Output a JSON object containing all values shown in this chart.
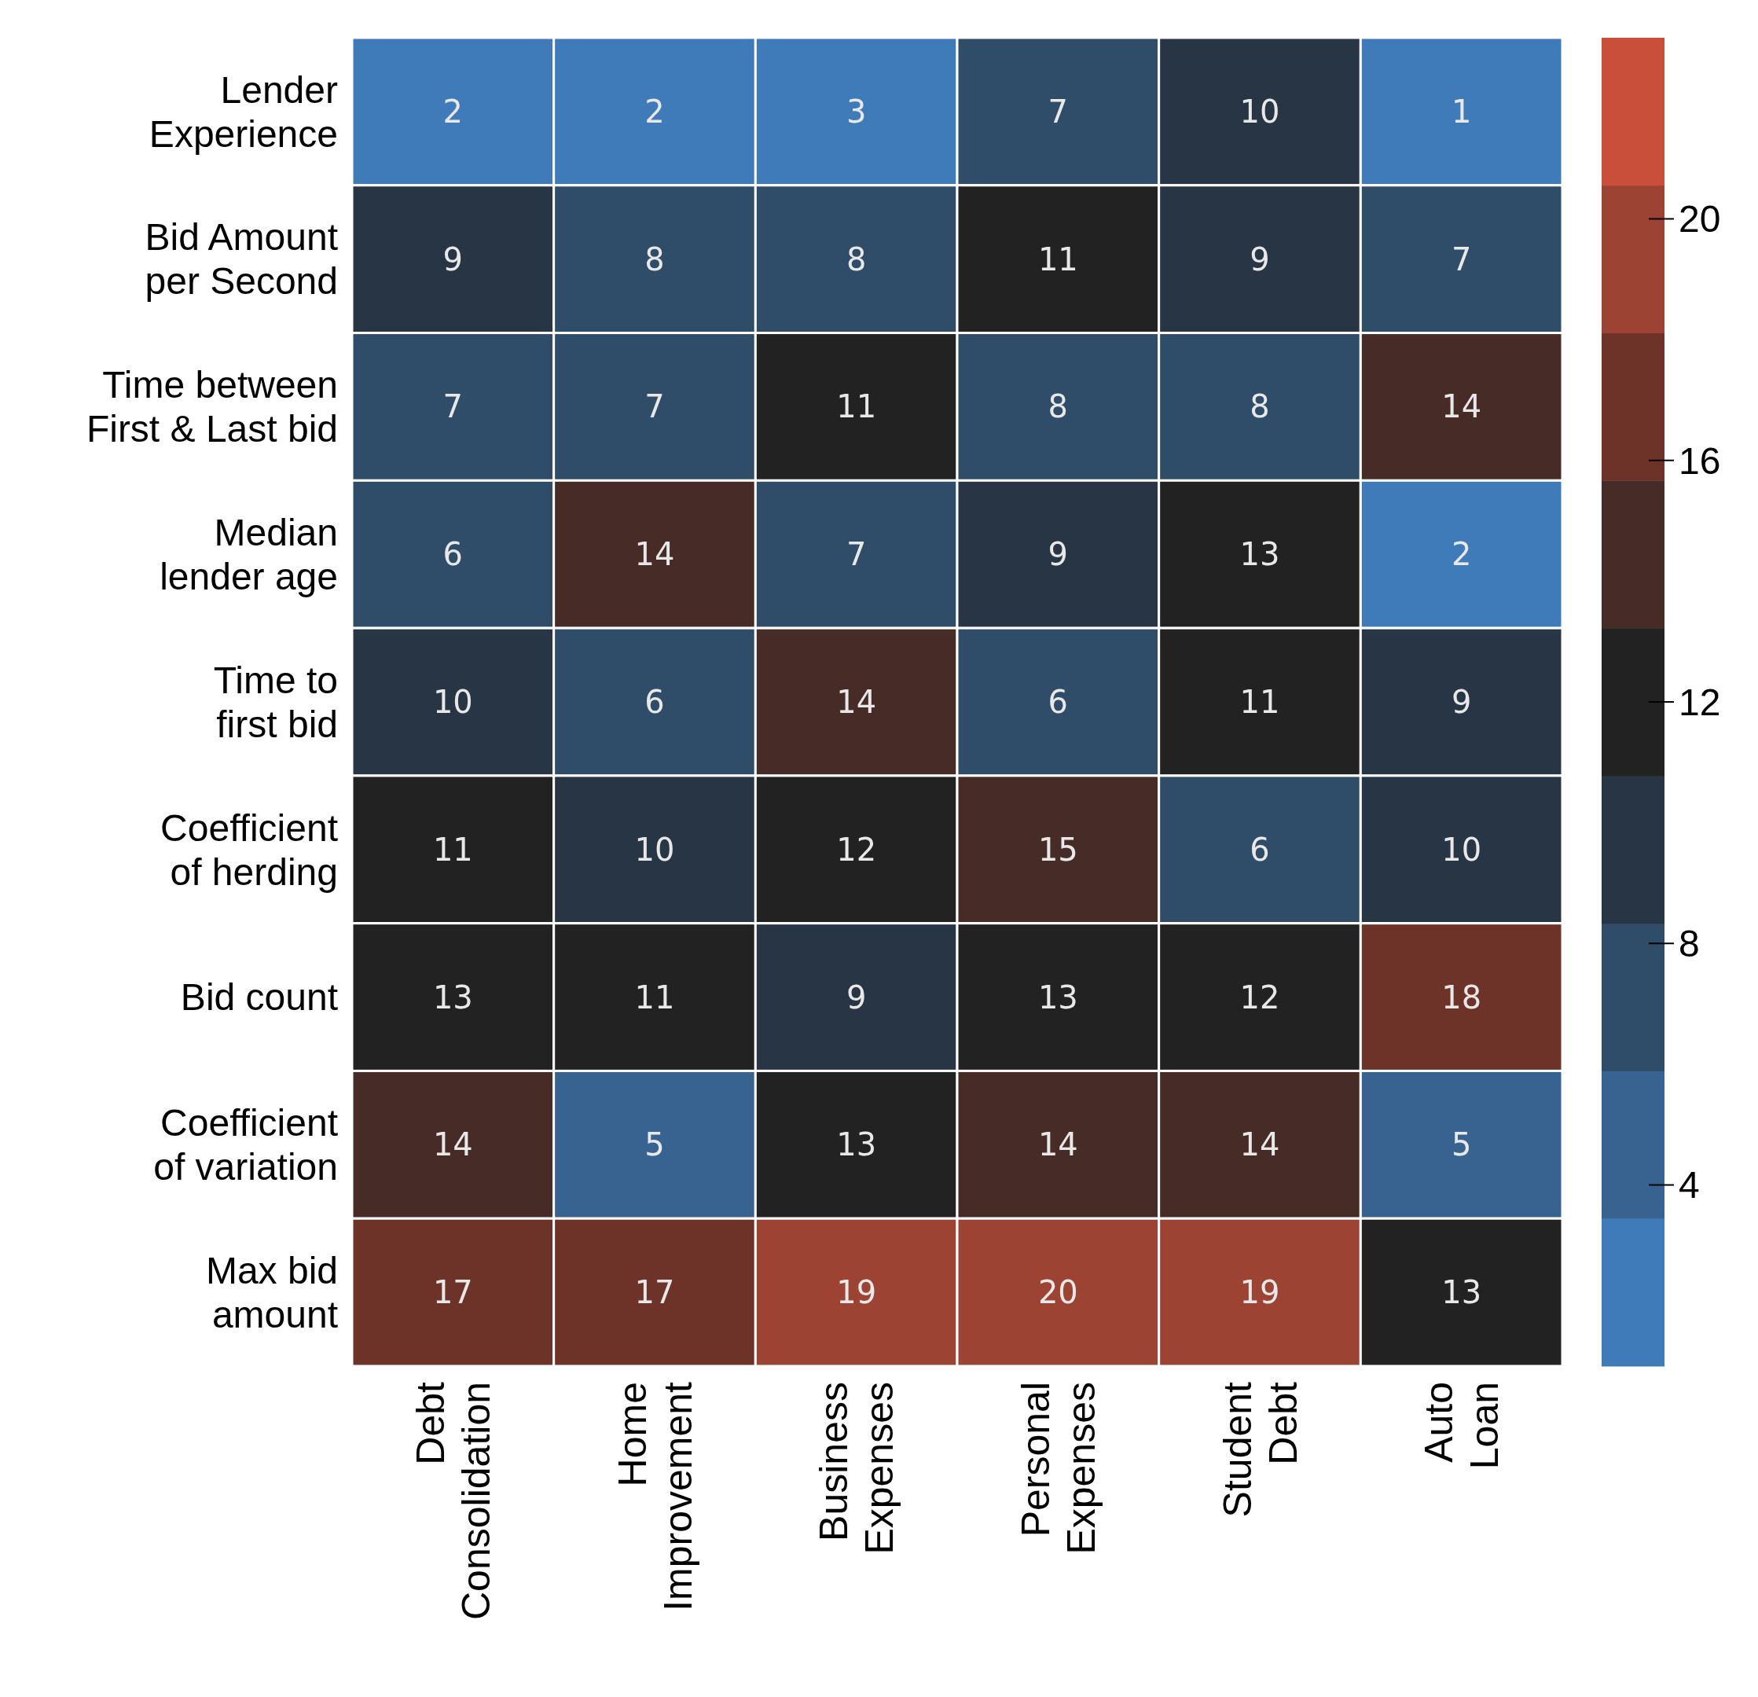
{
  "chart_data": {
    "type": "heatmap",
    "categories": [
      "Debt\nConsolidation",
      "Home\nImprovement",
      "Business\nExpenses",
      "Personal\nExpenses",
      "Student\nDebt",
      "Auto\nLoan"
    ],
    "y_categories": [
      "Lender\nExperience",
      "Bid Amount\nper Second",
      "Time between\nFirst & Last bid",
      "Median\nlender age",
      "Time to\nfirst bid",
      "Coefficient\nof herding",
      "Bid count",
      "Coefficient\nof variation",
      "Max bid\namount"
    ],
    "cells": [
      [
        2,
        2,
        3,
        7,
        10,
        1
      ],
      [
        9,
        8,
        8,
        11,
        9,
        7
      ],
      [
        7,
        7,
        11,
        8,
        8,
        14
      ],
      [
        6,
        14,
        7,
        9,
        13,
        2
      ],
      [
        10,
        6,
        14,
        6,
        11,
        9
      ],
      [
        11,
        10,
        12,
        15,
        6,
        10
      ],
      [
        13,
        11,
        9,
        13,
        12,
        18
      ],
      [
        14,
        5,
        13,
        14,
        14,
        5
      ],
      [
        17,
        17,
        19,
        20,
        19,
        13
      ]
    ],
    "data_labels": true,
    "clim": [
      1,
      23
    ],
    "cticks": [
      4,
      8,
      12,
      16,
      20
    ],
    "colors": [
      "#3f7bb9",
      "#386391",
      "#2f4c69",
      "#283544",
      "#222222",
      "#462b27",
      "#6d3329",
      "#9c4334",
      "#c94f3a"
    ]
  }
}
